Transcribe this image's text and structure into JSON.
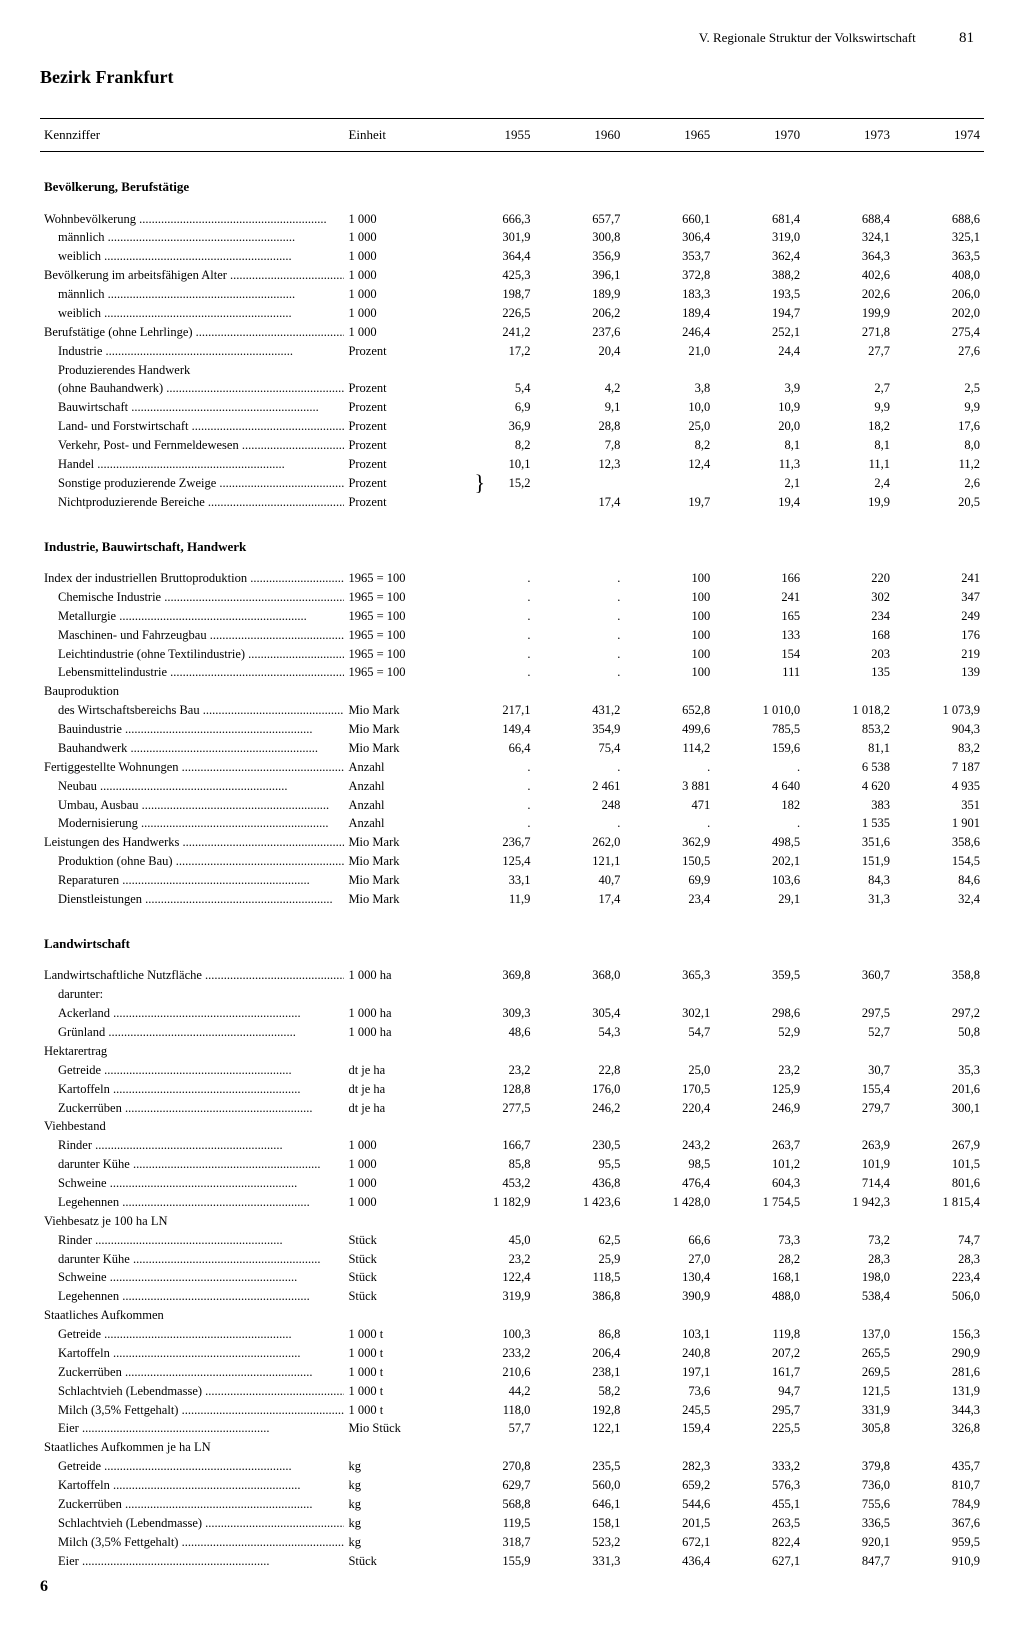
{
  "header": {
    "section_title": "V. Regionale Struktur der Volkswirtschaft",
    "page_number": "81"
  },
  "title": "Bezirk Frankfurt",
  "columns": {
    "kennziffer": "Kennziffer",
    "einheit": "Einheit",
    "years": [
      "1955",
      "1960",
      "1965",
      "1970",
      "1973",
      "1974"
    ]
  },
  "sections": [
    {
      "title": "Bevölkerung, Berufstätige",
      "rows": [
        {
          "label": "Wohnbevölkerung",
          "dots": true,
          "unit": "1 000",
          "v": [
            "666,3",
            "657,7",
            "660,1",
            "681,4",
            "688,4",
            "688,6"
          ]
        },
        {
          "label": "männlich",
          "indent": 1,
          "dots": true,
          "unit": "1 000",
          "v": [
            "301,9",
            "300,8",
            "306,4",
            "319,0",
            "324,1",
            "325,1"
          ]
        },
        {
          "label": "weiblich",
          "indent": 1,
          "dots": true,
          "unit": "1 000",
          "v": [
            "364,4",
            "356,9",
            "353,7",
            "362,4",
            "364,3",
            "363,5"
          ]
        },
        {
          "label": "Bevölkerung im arbeitsfähigen Alter",
          "dots": true,
          "unit": "1 000",
          "v": [
            "425,3",
            "396,1",
            "372,8",
            "388,2",
            "402,6",
            "408,0"
          ]
        },
        {
          "label": "männlich",
          "indent": 1,
          "dots": true,
          "unit": "1 000",
          "v": [
            "198,7",
            "189,9",
            "183,3",
            "193,5",
            "202,6",
            "206,0"
          ]
        },
        {
          "label": "weiblich",
          "indent": 1,
          "dots": true,
          "unit": "1 000",
          "v": [
            "226,5",
            "206,2",
            "189,4",
            "194,7",
            "199,9",
            "202,0"
          ]
        },
        {
          "label": "Berufstätige (ohne Lehrlinge)",
          "dots": true,
          "unit": "1 000",
          "v": [
            "241,2",
            "237,6",
            "246,4",
            "252,1",
            "271,8",
            "275,4"
          ]
        },
        {
          "label": "Industrie",
          "indent": 1,
          "dots": true,
          "unit": "Prozent",
          "v": [
            "17,2",
            "20,4",
            "21,0",
            "24,4",
            "27,7",
            "27,6"
          ]
        },
        {
          "label": "Produzierendes Handwerk",
          "indent": 1,
          "unit": "",
          "v": [
            "",
            "",
            "",
            "",
            "",
            ""
          ]
        },
        {
          "label": "(ohne Bauhandwerk)",
          "indent": 2,
          "dots": true,
          "unit": "Prozent",
          "v": [
            "5,4",
            "4,2",
            "3,8",
            "3,9",
            "2,7",
            "2,5"
          ]
        },
        {
          "label": "Bauwirtschaft",
          "indent": 1,
          "dots": true,
          "unit": "Prozent",
          "v": [
            "6,9",
            "9,1",
            "10,0",
            "10,9",
            "9,9",
            "9,9"
          ]
        },
        {
          "label": "Land- und Forstwirtschaft",
          "indent": 1,
          "dots": true,
          "unit": "Prozent",
          "v": [
            "36,9",
            "28,8",
            "25,0",
            "20,0",
            "18,2",
            "17,6"
          ]
        },
        {
          "label": "Verkehr, Post- und Fernmeldewesen",
          "indent": 1,
          "dots": true,
          "unit": "Prozent",
          "v": [
            "8,2",
            "7,8",
            "8,2",
            "8,1",
            "8,1",
            "8,0"
          ]
        },
        {
          "label": "Handel",
          "indent": 1,
          "dots": true,
          "unit": "Prozent",
          "v": [
            "10,1",
            "12,3",
            "12,4",
            "11,3",
            "11,1",
            "11,2"
          ]
        },
        {
          "label": "Sonstige produzierende Zweige",
          "indent": 1,
          "dots": true,
          "unit": "Prozent",
          "v": [
            "",
            "",
            "",
            "2,1",
            "2,4",
            "2,6"
          ],
          "brace": true,
          "brace_val": "15,2"
        },
        {
          "label": "Nichtproduzierende Bereiche",
          "indent": 1,
          "dots": true,
          "unit": "Prozent",
          "v": [
            "",
            "17,4",
            "19,7",
            "19,4",
            "19,9",
            "20,5"
          ]
        }
      ]
    },
    {
      "title": "Industrie, Bauwirtschaft, Handwerk",
      "rows": [
        {
          "label": "Index der industriellen Bruttoproduktion",
          "dots": true,
          "unit": "1965 = 100",
          "v": [
            ".",
            ".",
            "100",
            "166",
            "220",
            "241"
          ]
        },
        {
          "label": "Chemische Industrie",
          "indent": 1,
          "dots": true,
          "unit": "1965 = 100",
          "v": [
            ".",
            ".",
            "100",
            "241",
            "302",
            "347"
          ]
        },
        {
          "label": "Metallurgie",
          "indent": 1,
          "dots": true,
          "unit": "1965 = 100",
          "v": [
            ".",
            ".",
            "100",
            "165",
            "234",
            "249"
          ]
        },
        {
          "label": "Maschinen- und Fahrzeugbau",
          "indent": 1,
          "dots": true,
          "unit": "1965 = 100",
          "v": [
            ".",
            ".",
            "100",
            "133",
            "168",
            "176"
          ]
        },
        {
          "label": "Leichtindustrie (ohne Textilindustrie)",
          "indent": 1,
          "dots": true,
          "unit": "1965 = 100",
          "v": [
            ".",
            ".",
            "100",
            "154",
            "203",
            "219"
          ]
        },
        {
          "label": "Lebensmittelindustrie",
          "indent": 1,
          "dots": true,
          "unit": "1965 = 100",
          "v": [
            ".",
            ".",
            "100",
            "111",
            "135",
            "139"
          ]
        },
        {
          "label": "Bauproduktion",
          "unit": "",
          "v": [
            "",
            "",
            "",
            "",
            "",
            ""
          ]
        },
        {
          "label": "des Wirtschaftsbereichs Bau",
          "indent": 1,
          "dots": true,
          "unit": "Mio Mark",
          "v": [
            "217,1",
            "431,2",
            "652,8",
            "1 010,0",
            "1 018,2",
            "1 073,9"
          ]
        },
        {
          "label": "Bauindustrie",
          "indent": 1,
          "dots": true,
          "unit": "Mio Mark",
          "v": [
            "149,4",
            "354,9",
            "499,6",
            "785,5",
            "853,2",
            "904,3"
          ]
        },
        {
          "label": "Bauhandwerk",
          "indent": 1,
          "dots": true,
          "unit": "Mio Mark",
          "v": [
            "66,4",
            "75,4",
            "114,2",
            "159,6",
            "81,1",
            "83,2"
          ]
        },
        {
          "label": "Fertiggestellte Wohnungen",
          "dots": true,
          "unit": "Anzahl",
          "v": [
            ".",
            ".",
            ".",
            ".",
            "6 538",
            "7 187"
          ]
        },
        {
          "label": "Neubau",
          "indent": 1,
          "dots": true,
          "unit": "Anzahl",
          "v": [
            ".",
            "2 461",
            "3 881",
            "4 640",
            "4 620",
            "4 935"
          ]
        },
        {
          "label": "Umbau, Ausbau",
          "indent": 1,
          "dots": true,
          "unit": "Anzahl",
          "v": [
            ".",
            "248",
            "471",
            "182",
            "383",
            "351"
          ]
        },
        {
          "label": "Modernisierung",
          "indent": 1,
          "dots": true,
          "unit": "Anzahl",
          "v": [
            ".",
            ".",
            ".",
            ".",
            "1 535",
            "1 901"
          ]
        },
        {
          "label": "Leistungen des Handwerks",
          "dots": true,
          "unit": "Mio Mark",
          "v": [
            "236,7",
            "262,0",
            "362,9",
            "498,5",
            "351,6",
            "358,6"
          ]
        },
        {
          "label": "Produktion (ohne Bau)",
          "indent": 1,
          "dots": true,
          "unit": "Mio Mark",
          "v": [
            "125,4",
            "121,1",
            "150,5",
            "202,1",
            "151,9",
            "154,5"
          ]
        },
        {
          "label": "Reparaturen",
          "indent": 1,
          "dots": true,
          "unit": "Mio Mark",
          "v": [
            "33,1",
            "40,7",
            "69,9",
            "103,6",
            "84,3",
            "84,6"
          ]
        },
        {
          "label": "Dienstleistungen",
          "indent": 1,
          "dots": true,
          "unit": "Mio Mark",
          "v": [
            "11,9",
            "17,4",
            "23,4",
            "29,1",
            "31,3",
            "32,4"
          ]
        }
      ]
    },
    {
      "title": "Landwirtschaft",
      "rows": [
        {
          "label": "Landwirtschaftliche Nutzfläche",
          "dots": true,
          "unit": "1 000 ha",
          "v": [
            "369,8",
            "368,0",
            "365,3",
            "359,5",
            "360,7",
            "358,8"
          ]
        },
        {
          "label": "darunter:",
          "indent": 1,
          "unit": "",
          "v": [
            "",
            "",
            "",
            "",
            "",
            ""
          ]
        },
        {
          "label": "Ackerland",
          "indent": 1,
          "dots": true,
          "unit": "1 000 ha",
          "v": [
            "309,3",
            "305,4",
            "302,1",
            "298,6",
            "297,5",
            "297,2"
          ]
        },
        {
          "label": "Grünland",
          "indent": 1,
          "dots": true,
          "unit": "1 000 ha",
          "v": [
            "48,6",
            "54,3",
            "54,7",
            "52,9",
            "52,7",
            "50,8"
          ]
        },
        {
          "label": "Hektarertrag",
          "unit": "",
          "v": [
            "",
            "",
            "",
            "",
            "",
            ""
          ]
        },
        {
          "label": "Getreide",
          "indent": 1,
          "dots": true,
          "unit": "dt je ha",
          "v": [
            "23,2",
            "22,8",
            "25,0",
            "23,2",
            "30,7",
            "35,3"
          ]
        },
        {
          "label": "Kartoffeln",
          "indent": 1,
          "dots": true,
          "unit": "dt je ha",
          "v": [
            "128,8",
            "176,0",
            "170,5",
            "125,9",
            "155,4",
            "201,6"
          ]
        },
        {
          "label": "Zuckerrüben",
          "indent": 1,
          "dots": true,
          "unit": "dt je ha",
          "v": [
            "277,5",
            "246,2",
            "220,4",
            "246,9",
            "279,7",
            "300,1"
          ]
        },
        {
          "label": "Viehbestand",
          "unit": "",
          "v": [
            "",
            "",
            "",
            "",
            "",
            ""
          ]
        },
        {
          "label": "Rinder",
          "indent": 1,
          "dots": true,
          "unit": "1 000",
          "v": [
            "166,7",
            "230,5",
            "243,2",
            "263,7",
            "263,9",
            "267,9"
          ]
        },
        {
          "label": "darunter Kühe",
          "indent": 2,
          "dots": true,
          "unit": "1 000",
          "v": [
            "85,8",
            "95,5",
            "98,5",
            "101,2",
            "101,9",
            "101,5"
          ]
        },
        {
          "label": "Schweine",
          "indent": 1,
          "dots": true,
          "unit": "1 000",
          "v": [
            "453,2",
            "436,8",
            "476,4",
            "604,3",
            "714,4",
            "801,6"
          ]
        },
        {
          "label": "Legehennen",
          "indent": 1,
          "dots": true,
          "unit": "1 000",
          "v": [
            "1 182,9",
            "1 423,6",
            "1 428,0",
            "1 754,5",
            "1 942,3",
            "1 815,4"
          ]
        },
        {
          "label": "Viehbesatz je 100 ha LN",
          "unit": "",
          "v": [
            "",
            "",
            "",
            "",
            "",
            ""
          ]
        },
        {
          "label": "Rinder",
          "indent": 1,
          "dots": true,
          "unit": "Stück",
          "v": [
            "45,0",
            "62,5",
            "66,6",
            "73,3",
            "73,2",
            "74,7"
          ]
        },
        {
          "label": "darunter Kühe",
          "indent": 2,
          "dots": true,
          "unit": "Stück",
          "v": [
            "23,2",
            "25,9",
            "27,0",
            "28,2",
            "28,3",
            "28,3"
          ]
        },
        {
          "label": "Schweine",
          "indent": 1,
          "dots": true,
          "unit": "Stück",
          "v": [
            "122,4",
            "118,5",
            "130,4",
            "168,1",
            "198,0",
            "223,4"
          ]
        },
        {
          "label": "Legehennen",
          "indent": 1,
          "dots": true,
          "unit": "Stück",
          "v": [
            "319,9",
            "386,8",
            "390,9",
            "488,0",
            "538,4",
            "506,0"
          ]
        },
        {
          "label": "Staatliches Aufkommen",
          "unit": "",
          "v": [
            "",
            "",
            "",
            "",
            "",
            ""
          ]
        },
        {
          "label": "Getreide",
          "indent": 1,
          "dots": true,
          "unit": "1 000 t",
          "v": [
            "100,3",
            "86,8",
            "103,1",
            "119,8",
            "137,0",
            "156,3"
          ]
        },
        {
          "label": "Kartoffeln",
          "indent": 1,
          "dots": true,
          "unit": "1 000 t",
          "v": [
            "233,2",
            "206,4",
            "240,8",
            "207,2",
            "265,5",
            "290,9"
          ]
        },
        {
          "label": "Zuckerrüben",
          "indent": 1,
          "dots": true,
          "unit": "1 000 t",
          "v": [
            "210,6",
            "238,1",
            "197,1",
            "161,7",
            "269,5",
            "281,6"
          ]
        },
        {
          "label": "Schlachtvieh (Lebendmasse)",
          "indent": 1,
          "dots": true,
          "unit": "1 000 t",
          "v": [
            "44,2",
            "58,2",
            "73,6",
            "94,7",
            "121,5",
            "131,9"
          ]
        },
        {
          "label": "Milch (3,5% Fettgehalt)",
          "indent": 1,
          "dots": true,
          "unit": "1 000 t",
          "v": [
            "118,0",
            "192,8",
            "245,5",
            "295,7",
            "331,9",
            "344,3"
          ]
        },
        {
          "label": "Eier",
          "indent": 1,
          "dots": true,
          "unit": "Mio Stück",
          "v": [
            "57,7",
            "122,1",
            "159,4",
            "225,5",
            "305,8",
            "326,8"
          ]
        },
        {
          "label": "Staatliches Aufkommen je ha LN",
          "unit": "",
          "v": [
            "",
            "",
            "",
            "",
            "",
            ""
          ]
        },
        {
          "label": "Getreide",
          "indent": 1,
          "dots": true,
          "unit": "kg",
          "v": [
            "270,8",
            "235,5",
            "282,3",
            "333,2",
            "379,8",
            "435,7"
          ]
        },
        {
          "label": "Kartoffeln",
          "indent": 1,
          "dots": true,
          "unit": "kg",
          "v": [
            "629,7",
            "560,0",
            "659,2",
            "576,3",
            "736,0",
            "810,7"
          ]
        },
        {
          "label": "Zuckerrüben",
          "indent": 1,
          "dots": true,
          "unit": "kg",
          "v": [
            "568,8",
            "646,1",
            "544,6",
            "455,1",
            "755,6",
            "784,9"
          ]
        },
        {
          "label": "Schlachtvieh (Lebendmasse)",
          "indent": 1,
          "dots": true,
          "unit": "kg",
          "v": [
            "119,5",
            "158,1",
            "201,5",
            "263,5",
            "336,5",
            "367,6"
          ]
        },
        {
          "label": "Milch (3,5% Fettgehalt)",
          "indent": 1,
          "dots": true,
          "unit": "kg",
          "v": [
            "318,7",
            "523,2",
            "672,1",
            "822,4",
            "920,1",
            "959,5"
          ]
        },
        {
          "label": "Eier",
          "indent": 1,
          "dots": true,
          "unit": "Stück",
          "v": [
            "155,9",
            "331,3",
            "436,4",
            "627,1",
            "847,7",
            "910,9"
          ]
        }
      ]
    }
  ],
  "footer_number": "6"
}
